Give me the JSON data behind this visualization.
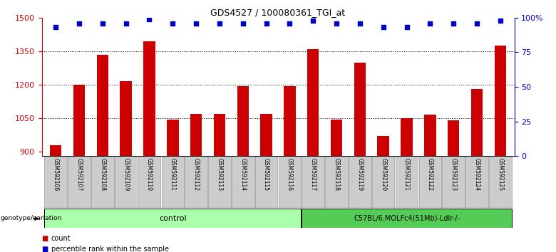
{
  "title": "GDS4527 / 100080361_TGI_at",
  "samples": [
    "GSM592106",
    "GSM592107",
    "GSM592108",
    "GSM592109",
    "GSM592110",
    "GSM592111",
    "GSM592112",
    "GSM592113",
    "GSM592114",
    "GSM592115",
    "GSM592116",
    "GSM592117",
    "GSM592118",
    "GSM592119",
    "GSM592120",
    "GSM592121",
    "GSM592122",
    "GSM592123",
    "GSM592124",
    "GSM592125"
  ],
  "counts": [
    930,
    1200,
    1335,
    1215,
    1395,
    1045,
    1070,
    1070,
    1195,
    1070,
    1195,
    1360,
    1045,
    1300,
    970,
    1050,
    1065,
    1040,
    1180,
    1375
  ],
  "percentile_ranks": [
    93,
    96,
    96,
    96,
    99,
    96,
    96,
    96,
    96,
    96,
    96,
    98,
    96,
    96,
    93,
    93,
    96,
    96,
    96,
    98
  ],
  "bar_color": "#cc0000",
  "dot_color": "#0000cc",
  "ylim_left": [
    880,
    1500
  ],
  "ylim_right": [
    0,
    100
  ],
  "yticks_left": [
    900,
    1050,
    1200,
    1350,
    1500
  ],
  "yticks_right": [
    0,
    25,
    50,
    75,
    100
  ],
  "yticklabels_right": [
    "0",
    "25",
    "50",
    "75",
    "100%"
  ],
  "grid_values": [
    1050,
    1200,
    1350
  ],
  "control_group_count": 11,
  "treat_group_count": 9,
  "control_label": "control",
  "treat_label": "C57BL/6.MOLFc4(51Mb)-Ldlr-/-",
  "genotype_label": "genotype/variation",
  "legend_count": "count",
  "legend_pct": "percentile rank within the sample",
  "control_color": "#aaffaa",
  "treat_color": "#55cc55",
  "sample_box_color": "#cccccc",
  "bar_width": 0.5
}
